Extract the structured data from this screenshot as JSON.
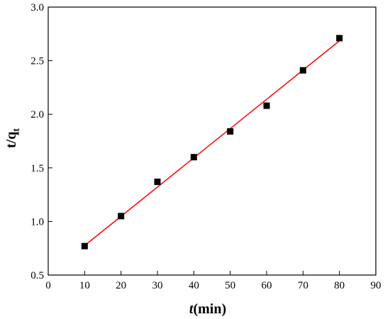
{
  "chart_data": {
    "type": "scatter",
    "title": "",
    "xlabel": {
      "italic_part": "t",
      "rest": "(min)"
    },
    "ylabel": {
      "main": "t/q",
      "subscript": "t"
    },
    "xlim": [
      0,
      90
    ],
    "ylim": [
      0.5,
      3.0
    ],
    "xticks": [
      0,
      10,
      20,
      30,
      40,
      50,
      60,
      70,
      80,
      90
    ],
    "yticks": [
      0.5,
      1.0,
      1.5,
      2.0,
      2.5,
      3.0
    ],
    "ytick_labels": [
      "0.5",
      "1.0",
      "1.5",
      "2.0",
      "2.5",
      "3.0"
    ],
    "grid": false,
    "series": [
      {
        "marker": "square",
        "color": "#000000",
        "x": [
          10,
          20,
          30,
          40,
          50,
          60,
          70,
          80
        ],
        "y": [
          0.77,
          1.05,
          1.37,
          1.6,
          1.84,
          2.08,
          2.41,
          2.71
        ]
      }
    ],
    "fit_line": {
      "type": "linear",
      "color": "#ff0000",
      "x": [
        10,
        80
      ],
      "y": [
        0.775,
        2.685
      ]
    }
  }
}
